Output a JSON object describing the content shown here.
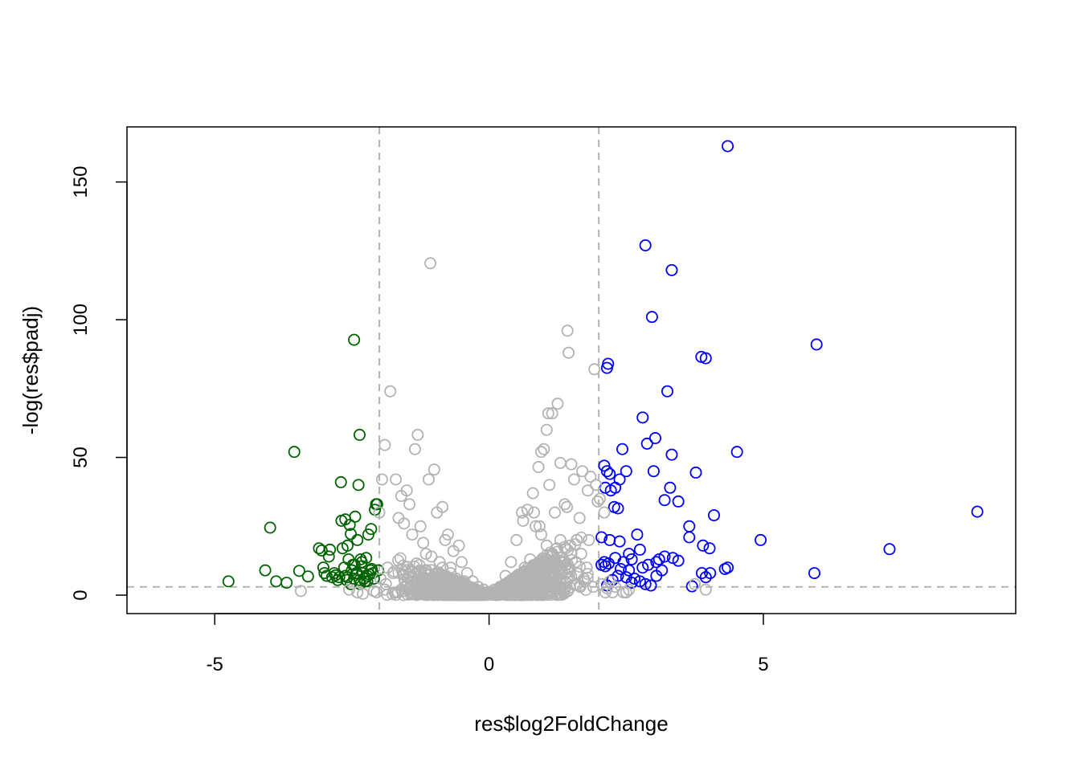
{
  "chart_data": {
    "type": "scatter",
    "title": "",
    "xlabel": "res$log2FoldChange",
    "ylabel": "-log(res$padj)",
    "xlim": [
      -6.6,
      9.6
    ],
    "ylim": [
      -6.7,
      170
    ],
    "x_ticks": [
      -5,
      0,
      5
    ],
    "x_tick_labels": [
      "-5",
      "0",
      "5"
    ],
    "y_ticks": [
      0,
      50,
      100,
      150
    ],
    "y_tick_labels": [
      "0",
      "50",
      "100",
      "150"
    ],
    "grid": false,
    "legend": "none",
    "marker": "open-circle",
    "colors": {
      "down": "#006400",
      "up": "#0000ff",
      "not_significant": "#b3b3b3",
      "threshold_line": "#b3b3b3"
    },
    "threshold_lines": {
      "vertical": [
        -2,
        2
      ],
      "horizontal": [
        3
      ]
    },
    "series": [
      {
        "color": "#006400",
        "x": [
          -4.75,
          -3.99,
          -4.08,
          -3.88,
          -3.69,
          -3.55,
          -3.46,
          -3.3,
          -3.1,
          -3.05,
          -3.02,
          -3,
          -2.96,
          -2.92,
          -2.9,
          -2.86,
          -2.82,
          -2.8,
          -2.76,
          -2.73,
          -2.69,
          -2.67,
          -2.64,
          -2.62,
          -2.6,
          -2.58,
          -2.56,
          -2.54,
          -2.52,
          -2.5,
          -2.48,
          -2.46,
          -2.44,
          -2.42,
          -2.4,
          -2.38,
          -2.36,
          -2.34,
          -2.32,
          -2.3,
          -2.28,
          -2.26,
          -2.24,
          -2.22,
          -2.2,
          -2.18,
          -2.16,
          -2.14,
          -2.12,
          -2.1,
          -2.08,
          -2.06,
          -2.04,
          -2.02,
          -2.46,
          -2.36,
          -2.35,
          -2.58,
          -2.7,
          -2.22,
          -2.15,
          -2.45,
          -2.62,
          -2.52,
          -2.32,
          -2.4
        ],
        "y": [
          5,
          24.5,
          9,
          5,
          4.5,
          52,
          8.8,
          6.8,
          17,
          16.2,
          10,
          8,
          7,
          14,
          16.5,
          6.5,
          8,
          7.2,
          5.5,
          6.5,
          27,
          17,
          10,
          27.5,
          5.5,
          18,
          13,
          25.5,
          22.2,
          9,
          11,
          6,
          28.5,
          8,
          20,
          40,
          58.2,
          13,
          12,
          8,
          6,
          5,
          13.5,
          7,
          22,
          7.5,
          9,
          9.5,
          8,
          6,
          31,
          33,
          33,
          9,
          92.7,
          5.5,
          4,
          6.5,
          41,
          5,
          24,
          11,
          7,
          4,
          10.5,
          7.8
        ]
      },
      {
        "color": "#0000ff",
        "x": [
          4.35,
          2.85,
          3.33,
          2.97,
          5.97,
          3.87,
          3.95,
          2.17,
          2.15,
          3.25,
          2.8,
          3.03,
          2.88,
          2.43,
          4.52,
          3.33,
          2.1,
          2.5,
          2.15,
          3,
          2.2,
          3.77,
          2.38,
          2.3,
          3.3,
          2.12,
          2.22,
          3.2,
          3.45,
          2.28,
          2.35,
          4.1,
          3.65,
          2.7,
          2.05,
          3.65,
          4.95,
          2.2,
          2.38,
          3.9,
          2.75,
          4.02,
          7.3,
          2.55,
          2.6,
          2.3,
          3.1,
          3.2,
          3.35,
          2.45,
          3.05,
          2.9,
          3.45,
          2.05,
          2.12,
          4.35,
          4.3,
          3.88,
          5.93,
          4.03,
          3.15,
          3.95,
          3.05,
          2.65,
          2.25,
          2.5,
          2.75,
          2.35,
          2.6,
          2.15,
          3.7,
          2.95,
          8.9,
          2.4,
          2.18,
          2.55,
          2.8,
          2.1,
          2.85
        ],
        "y": [
          163,
          127,
          118,
          101,
          91,
          86.5,
          86,
          84,
          82.5,
          74,
          64.5,
          57,
          55,
          53,
          52,
          51,
          47,
          45,
          45,
          45,
          44,
          44.5,
          42,
          39,
          39,
          39,
          38,
          34.5,
          34,
          32,
          31.5,
          29,
          25,
          22,
          21,
          21,
          20,
          20,
          19.5,
          18,
          16.5,
          17,
          16.7,
          15,
          13,
          13.5,
          13,
          14,
          13.5,
          12,
          12,
          11,
          12.5,
          11,
          10.5,
          10,
          9.5,
          8,
          8,
          8,
          9,
          6.5,
          7,
          6,
          5.5,
          6.5,
          5,
          7,
          4.5,
          3.5,
          3.2,
          3.5,
          30.3,
          9.5,
          11.5,
          9,
          10,
          12,
          4
        ]
      },
      {
        "color": "#b3b3b3",
        "x": [
          -1.07,
          -1.8,
          -1.9,
          -1.7,
          -1.3,
          -1.35,
          -1.1,
          -1,
          -0.85,
          -0.75,
          -0.55,
          -1.95,
          -2,
          -1.5,
          -1.6,
          -1.45,
          -1.25,
          -0.95,
          -0.8,
          -0.65,
          -0.5,
          -0.4,
          -0.3,
          -0.2,
          -0.1,
          -0.05,
          -1.65,
          -1.55,
          -1.4,
          -1.2,
          -1.15,
          -0.9,
          -0.7,
          -0.6,
          -0.45,
          -0.35,
          -0.25,
          -0.15,
          -1.85,
          -1.75,
          -1.05,
          -0.85,
          -0.7,
          -1.3,
          -1.5,
          -1.2,
          -0.95,
          -1.6,
          -2.05,
          -1.88,
          -1.98,
          -1.9,
          -1.66,
          -1.4,
          -2.3,
          -2.4,
          -3.43,
          -2.55,
          -2.1,
          -1.72,
          -1.28,
          -1.18,
          -0.92,
          -0.62,
          -0.48,
          1.43,
          1.45,
          1.92,
          1.25,
          1.15,
          1.08,
          1.05,
          1,
          0.95,
          1.3,
          1.5,
          1.7,
          1.85,
          1.95,
          1.8,
          1.55,
          1.65,
          1.38,
          1.42,
          1.1,
          0.9,
          0.8,
          0.7,
          0.6,
          0.5,
          0.4,
          0.3,
          0.2,
          0.1,
          0.05,
          0.85,
          0.95,
          1.05,
          1.15,
          1.2,
          1.3,
          1.45,
          1.6,
          1.75,
          1.9,
          0.75,
          0.65,
          0.55,
          0.45,
          1.5,
          1.35,
          1.25,
          1.6,
          1.4,
          0.82,
          0.62,
          1.98,
          2.02,
          2.1,
          2.2,
          2.3,
          2.45,
          2.55,
          2.05,
          2.15,
          2.5,
          3.95,
          3.75,
          2.25,
          2.12,
          1.12,
          1.28,
          0.88,
          0.78,
          0.35,
          0.25,
          0.15,
          1.82,
          1.68,
          1.22,
          0.92,
          0.72,
          1.48,
          1.58,
          1.78
        ],
        "y": [
          120.5,
          74,
          54.5,
          42,
          58.2,
          53,
          42,
          45.6,
          32,
          22,
          18,
          42,
          30,
          38,
          36,
          33,
          25,
          30,
          20,
          16,
          12,
          8,
          5,
          3,
          2,
          1,
          28,
          26,
          22,
          19,
          15,
          12,
          10,
          6,
          5,
          3,
          2,
          1,
          10,
          8,
          14,
          10,
          8,
          5,
          4,
          3,
          2,
          2,
          1,
          4,
          6,
          2,
          1,
          0.5,
          0.5,
          1,
          1.5,
          2,
          1.5,
          1,
          0.5,
          0.5,
          1,
          0.5,
          0.3,
          96,
          88,
          82,
          69.5,
          66,
          66,
          60,
          53,
          52,
          48,
          47.5,
          45,
          43,
          40,
          38,
          42,
          28,
          33,
          32,
          40,
          46.5,
          37,
          31,
          30,
          20,
          12,
          7,
          3,
          2,
          1,
          25,
          22,
          18,
          15,
          30,
          20,
          10,
          8,
          5,
          3,
          13,
          10,
          6,
          4,
          15,
          12,
          9,
          20,
          17,
          30,
          27,
          34,
          35,
          30,
          5,
          3,
          1,
          2,
          4,
          2.5,
          1,
          2,
          4,
          1,
          1,
          1.5,
          0.5,
          0.8,
          0.5,
          0.3,
          2,
          1,
          20,
          15,
          5,
          25,
          8,
          18,
          12,
          10
        ]
      }
    ]
  }
}
